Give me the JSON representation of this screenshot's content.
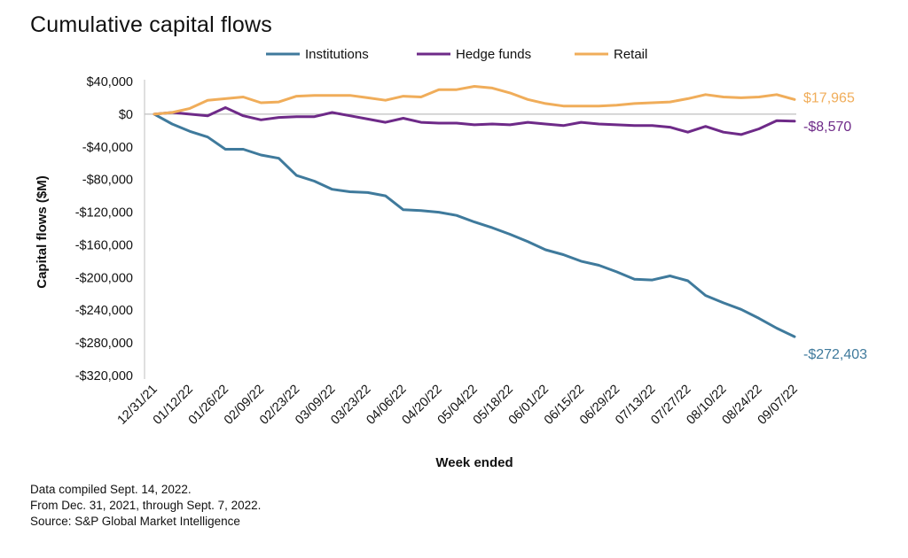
{
  "chart_data": {
    "type": "line",
    "title": "Cumulative capital flows",
    "xlabel": "Week ended",
    "ylabel": "Capital flows ($M)",
    "ylim": [
      -320000,
      40000
    ],
    "yticks": [
      40000,
      0,
      -40000,
      -80000,
      -120000,
      -160000,
      -200000,
      -240000,
      -280000,
      -320000
    ],
    "ytick_labels": [
      "$40,000",
      "$0",
      "-$40,000",
      "-$80,000",
      "-$120,000",
      "-$160,000",
      "-$200,000",
      "-$240,000",
      "-$280,000",
      "-$320,000"
    ],
    "xtick_labels": [
      "12/31/21",
      "01/12/22",
      "01/26/22",
      "02/09/22",
      "02/23/22",
      "03/09/22",
      "03/23/22",
      "04/06/22",
      "04/20/22",
      "05/04/22",
      "05/18/22",
      "06/01/22",
      "06/15/22",
      "06/29/22",
      "07/13/22",
      "07/27/22",
      "08/10/22",
      "08/24/22",
      "09/07/22"
    ],
    "x_weeks": 37,
    "grid": false,
    "legend_position": "top",
    "series": [
      {
        "name": "Institutions",
        "color": "#3f7a9c",
        "end_label": "-$272,403",
        "values": [
          0,
          -12000,
          -21000,
          -28000,
          -43000,
          -43000,
          -50000,
          -54000,
          -75000,
          -82000,
          -92000,
          -95000,
          -96000,
          -100000,
          -117000,
          -118000,
          -120000,
          -124000,
          -132000,
          -139000,
          -147000,
          -156000,
          -166000,
          -172000,
          -180000,
          -185000,
          -193000,
          -202000,
          -203000,
          -198000,
          -204000,
          -222000,
          -231000,
          -239000,
          -250000,
          -262000,
          -272403
        ]
      },
      {
        "name": "Hedge funds",
        "color": "#6e2a88",
        "end_label": "-$8,570",
        "values": [
          0,
          2000,
          0,
          -2000,
          8000,
          -2000,
          -7000,
          -4000,
          -3000,
          -3000,
          2000,
          -2000,
          -6000,
          -10000,
          -5000,
          -10000,
          -11000,
          -11000,
          -13000,
          -12000,
          -13000,
          -10000,
          -12000,
          -14000,
          -10000,
          -12000,
          -13000,
          -14000,
          -14000,
          -16000,
          -22000,
          -15000,
          -22000,
          -25000,
          -18000,
          -8000,
          -8570
        ]
      },
      {
        "name": "Retail",
        "color": "#f0ad5a",
        "end_label": "$17,965",
        "values": [
          0,
          2000,
          7000,
          17000,
          19000,
          21000,
          14000,
          15000,
          22000,
          23000,
          23000,
          23000,
          20000,
          17000,
          22000,
          21000,
          30000,
          30000,
          34000,
          32000,
          26000,
          18000,
          13000,
          10000,
          10000,
          10000,
          11000,
          13000,
          14000,
          15000,
          19000,
          24000,
          21000,
          20000,
          21000,
          24000,
          17965
        ]
      }
    ]
  },
  "notes": [
    "Data compiled Sept. 14, 2022.",
    "From Dec. 31, 2021, through Sept. 7, 2022.",
    "Source: S&P Global Market Intelligence"
  ]
}
